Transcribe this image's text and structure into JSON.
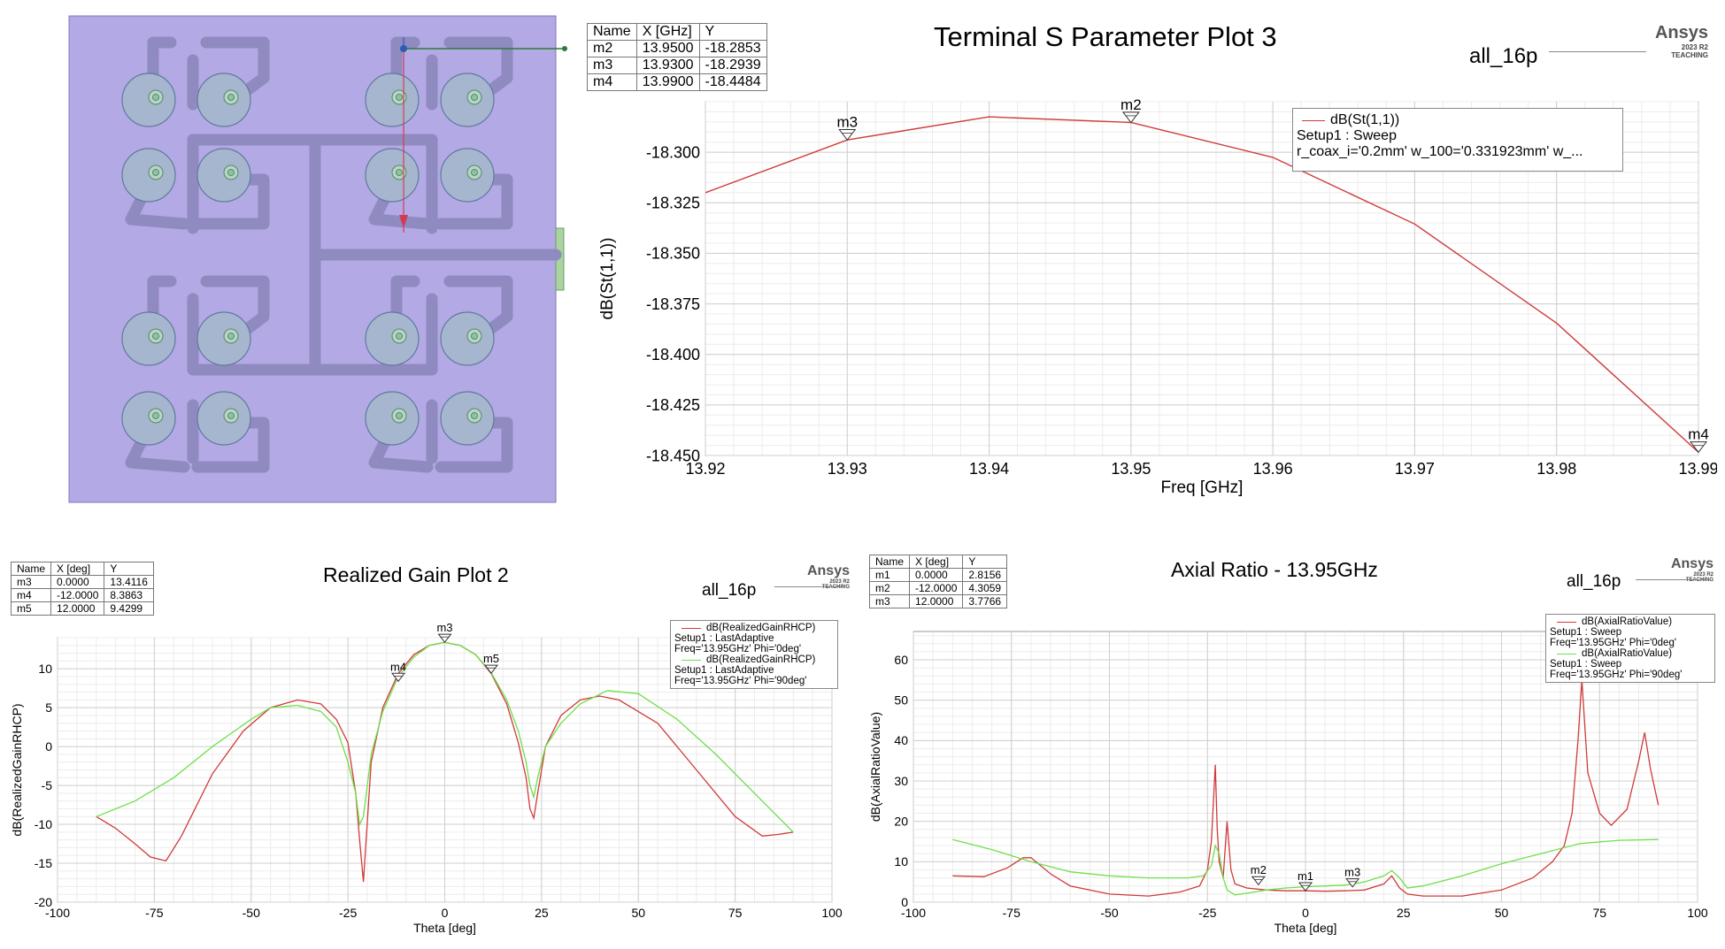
{
  "layout_panel": {
    "description_items": []
  },
  "sparam_plot": {
    "title": "Terminal S Parameter Plot 3",
    "brand": "Ansys",
    "brand_sub1": "2023 R2",
    "brand_sub2": "TEACHING",
    "project": "all_16p",
    "markers_table": {
      "headers": [
        "Name",
        "X [GHz]",
        "Y"
      ],
      "rows": [
        [
          "m2",
          "13.9500",
          "-18.2853"
        ],
        [
          "m3",
          "13.9300",
          "-18.2939"
        ],
        [
          "m4",
          "13.9900",
          "-18.4484"
        ]
      ]
    },
    "legend": {
      "line1": "dB(St(1,1))",
      "line2": "Setup1 : Sweep",
      "line3": "r_coax_i='0.2mm' w_100='0.331923mm' w_..."
    },
    "colors": {
      "trace": "#d03a3a"
    }
  },
  "gain_plot": {
    "title": "Realized Gain Plot 2",
    "brand": "Ansys",
    "brand_sub1": "2023 R2",
    "brand_sub2": "TEACHING",
    "project": "all_16p",
    "markers_table": {
      "headers": [
        "Name",
        "X [deg]",
        "Y"
      ],
      "rows": [
        [
          "m3",
          "0.0000",
          "13.4116"
        ],
        [
          "m4",
          "-12.0000",
          "8.3863"
        ],
        [
          "m5",
          "12.0000",
          "9.4299"
        ]
      ]
    },
    "legend": {
      "s1_line1": "dB(RealizedGainRHCP)",
      "s1_line2": "Setup1 : LastAdaptive",
      "s1_line3": "Freq='13.95GHz' Phi='0deg'",
      "s2_line1": "dB(RealizedGainRHCP)",
      "s2_line2": "Setup1 : LastAdaptive",
      "s2_line3": "Freq='13.95GHz' Phi='90deg'"
    },
    "colors": {
      "phi0": "#d03a3a",
      "phi90": "#6ee04a"
    }
  },
  "axial_plot": {
    "title": "Axial Ratio - 13.95GHz",
    "brand": "Ansys",
    "brand_sub1": "2023 R2",
    "brand_sub2": "TEACHING",
    "project": "all_16p",
    "markers_table": {
      "headers": [
        "Name",
        "X [deg]",
        "Y"
      ],
      "rows": [
        [
          "m1",
          "0.0000",
          "2.8156"
        ],
        [
          "m2",
          "-12.0000",
          "4.3059"
        ],
        [
          "m3",
          "12.0000",
          "3.7766"
        ]
      ]
    },
    "legend": {
      "s1_line1": "dB(AxialRatioValue)",
      "s1_line2": "Setup1 : Sweep",
      "s1_line3": "Freq='13.95GHz' Phi='0deg'",
      "s2_line1": "dB(AxialRatioValue)",
      "s2_line2": "Setup1 : Sweep",
      "s2_line3": "Freq='13.95GHz' Phi='90deg'"
    },
    "colors": {
      "phi0": "#d03a3a",
      "phi90": "#6ee04a"
    }
  },
  "chart_data": [
    {
      "type": "line",
      "title": "Terminal S Parameter Plot 3",
      "xlabel": "Freq [GHz]",
      "ylabel": "dB(St(1,1))",
      "xlim": [
        13.92,
        13.99
      ],
      "ylim": [
        -18.45,
        -18.275
      ],
      "xticks": [
        "13.92",
        "13.93",
        "13.94",
        "13.95",
        "13.96",
        "13.97",
        "13.98",
        "13.99"
      ],
      "yticks": [
        "-18.300",
        "-18.325",
        "-18.350",
        "-18.375",
        "-18.400",
        "-18.425",
        "-18.450"
      ],
      "series": [
        {
          "name": "dB(St(1,1))",
          "x": [
            13.92,
            13.93,
            13.94,
            13.95,
            13.96,
            13.97,
            13.98,
            13.99
          ],
          "y": [
            -18.32,
            -18.2939,
            -18.2825,
            -18.2853,
            -18.3025,
            -18.3355,
            -18.3845,
            -18.4484
          ]
        }
      ],
      "markers": [
        {
          "name": "m3",
          "x": 13.93,
          "y": -18.2939
        },
        {
          "name": "m2",
          "x": 13.95,
          "y": -18.2853
        },
        {
          "name": "m4",
          "x": 13.99,
          "y": -18.4484
        }
      ]
    },
    {
      "type": "line",
      "title": "Realized Gain Plot 2",
      "xlabel": "Theta [deg]",
      "ylabel": "dB(RealizedGainRHCP)",
      "xlim": [
        -100,
        100
      ],
      "ylim": [
        -20,
        14
      ],
      "xticks": [
        "-100",
        "-75",
        "-50",
        "-25",
        "0",
        "25",
        "50",
        "75",
        "100"
      ],
      "yticks": [
        "10",
        "5",
        "0",
        "-5",
        "-10",
        "-15",
        "-20"
      ],
      "series": [
        {
          "name": "dB(RealizedGainRHCP) Phi='0deg'",
          "x": [
            -90,
            -85,
            -80,
            -76,
            -72,
            -68,
            -60,
            -52,
            -45,
            -38,
            -32,
            -28,
            -25,
            -23,
            -22,
            -21,
            -19,
            -16,
            -12,
            -8,
            -4,
            0,
            4,
            8,
            12,
            16,
            19,
            21,
            22,
            23,
            24,
            26,
            30,
            35,
            40,
            45,
            55,
            65,
            75,
            82,
            86,
            90
          ],
          "y": [
            -9,
            -10.5,
            -12.5,
            -14.2,
            -14.7,
            -11.5,
            -3.5,
            2,
            5,
            6,
            5.5,
            3.5,
            0.5,
            -6,
            -12,
            -17.4,
            -2,
            5,
            9.4,
            11.8,
            13,
            13.4,
            13,
            11.8,
            9.4,
            5.5,
            0.5,
            -4,
            -8,
            -9.2,
            -6,
            0,
            4,
            6,
            6.5,
            6,
            3,
            -3,
            -9,
            -11.5,
            -11.3,
            -11
          ]
        },
        {
          "name": "dB(RealizedGainRHCP) Phi='90deg'",
          "x": [
            -90,
            -80,
            -70,
            -60,
            -50,
            -45,
            -38,
            -32,
            -28,
            -25,
            -23,
            -22,
            -21,
            -19,
            -16,
            -12,
            -8,
            -4,
            0,
            4,
            8,
            12,
            16,
            19,
            21,
            22,
            23,
            24,
            26,
            30,
            35,
            42,
            50,
            60,
            70,
            80,
            90
          ],
          "y": [
            -9,
            -7,
            -4,
            0,
            3.5,
            5,
            5.3,
            4.5,
            2.5,
            -2,
            -6,
            -10,
            -9,
            -1,
            4.5,
            9,
            11.5,
            13,
            13.4,
            13,
            11.8,
            9.5,
            6,
            2,
            -2,
            -5,
            -6.5,
            -4,
            0,
            3,
            5.5,
            7.2,
            6.8,
            3.5,
            -1,
            -6,
            -11
          ]
        }
      ],
      "markers": [
        {
          "name": "m3",
          "x": 0,
          "y": 13.4116
        },
        {
          "name": "m4",
          "x": -12,
          "y": 8.3863
        },
        {
          "name": "m5",
          "x": 12,
          "y": 9.4299
        }
      ]
    },
    {
      "type": "line",
      "title": "Axial Ratio - 13.95GHz",
      "xlabel": "Theta [deg]",
      "ylabel": "dB(AxialRatioValue)",
      "xlim": [
        -100,
        100
      ],
      "ylim": [
        0,
        67
      ],
      "xticks": [
        "-100",
        "-75",
        "-50",
        "-25",
        "0",
        "25",
        "50",
        "75",
        "100"
      ],
      "yticks": [
        "60",
        "50",
        "40",
        "30",
        "20",
        "10",
        "0"
      ],
      "series": [
        {
          "name": "dB(AxialRatioValue) Phi='0deg'",
          "x": [
            -90,
            -82,
            -76,
            -72,
            -70,
            -65,
            -60,
            -50,
            -40,
            -32,
            -27,
            -25,
            -24,
            -23,
            -22.5,
            -22,
            -21,
            -20,
            -19,
            -18,
            -15,
            -10,
            -5,
            0,
            5,
            10,
            15,
            20,
            22,
            24,
            26,
            30,
            40,
            50,
            58,
            63,
            66,
            68,
            69.5,
            70.5,
            72,
            75,
            78,
            82,
            85,
            86.5,
            88,
            90
          ],
          "y": [
            6.5,
            6.3,
            8.5,
            11,
            11,
            7,
            4,
            2,
            1.5,
            2.5,
            4,
            8,
            15,
            34,
            18,
            10,
            6,
            20,
            8,
            4.5,
            3.5,
            3,
            2.8,
            2.8,
            2.7,
            2.8,
            3,
            4.5,
            6.5,
            3.5,
            2,
            1.5,
            1.5,
            3,
            6,
            10,
            14,
            22,
            40,
            55,
            32,
            22,
            19,
            23,
            35,
            42,
            33,
            24
          ]
        },
        {
          "name": "dB(AxialRatioValue) Phi='90deg'",
          "x": [
            -90,
            -80,
            -70,
            -60,
            -50,
            -40,
            -30,
            -26,
            -24,
            -23,
            -22,
            -21,
            -20,
            -18,
            -15,
            -10,
            -5,
            0,
            5,
            10,
            15,
            20,
            22,
            24,
            26,
            30,
            40,
            50,
            60,
            70,
            80,
            90
          ],
          "y": [
            15.5,
            13,
            10,
            7.5,
            6.5,
            6,
            6,
            6.5,
            9,
            14,
            12,
            6,
            3,
            1.8,
            2.2,
            3,
            3.5,
            3.8,
            4,
            4.2,
            5,
            6.5,
            7.8,
            6,
            3.5,
            4,
            6.5,
            9.5,
            12,
            14.5,
            15.3,
            15.5
          ]
        }
      ],
      "markers": [
        {
          "name": "m1",
          "x": 0,
          "y": 2.8156
        },
        {
          "name": "m2",
          "x": -12,
          "y": 4.3059
        },
        {
          "name": "m3",
          "x": 12,
          "y": 3.7766
        }
      ]
    }
  ]
}
